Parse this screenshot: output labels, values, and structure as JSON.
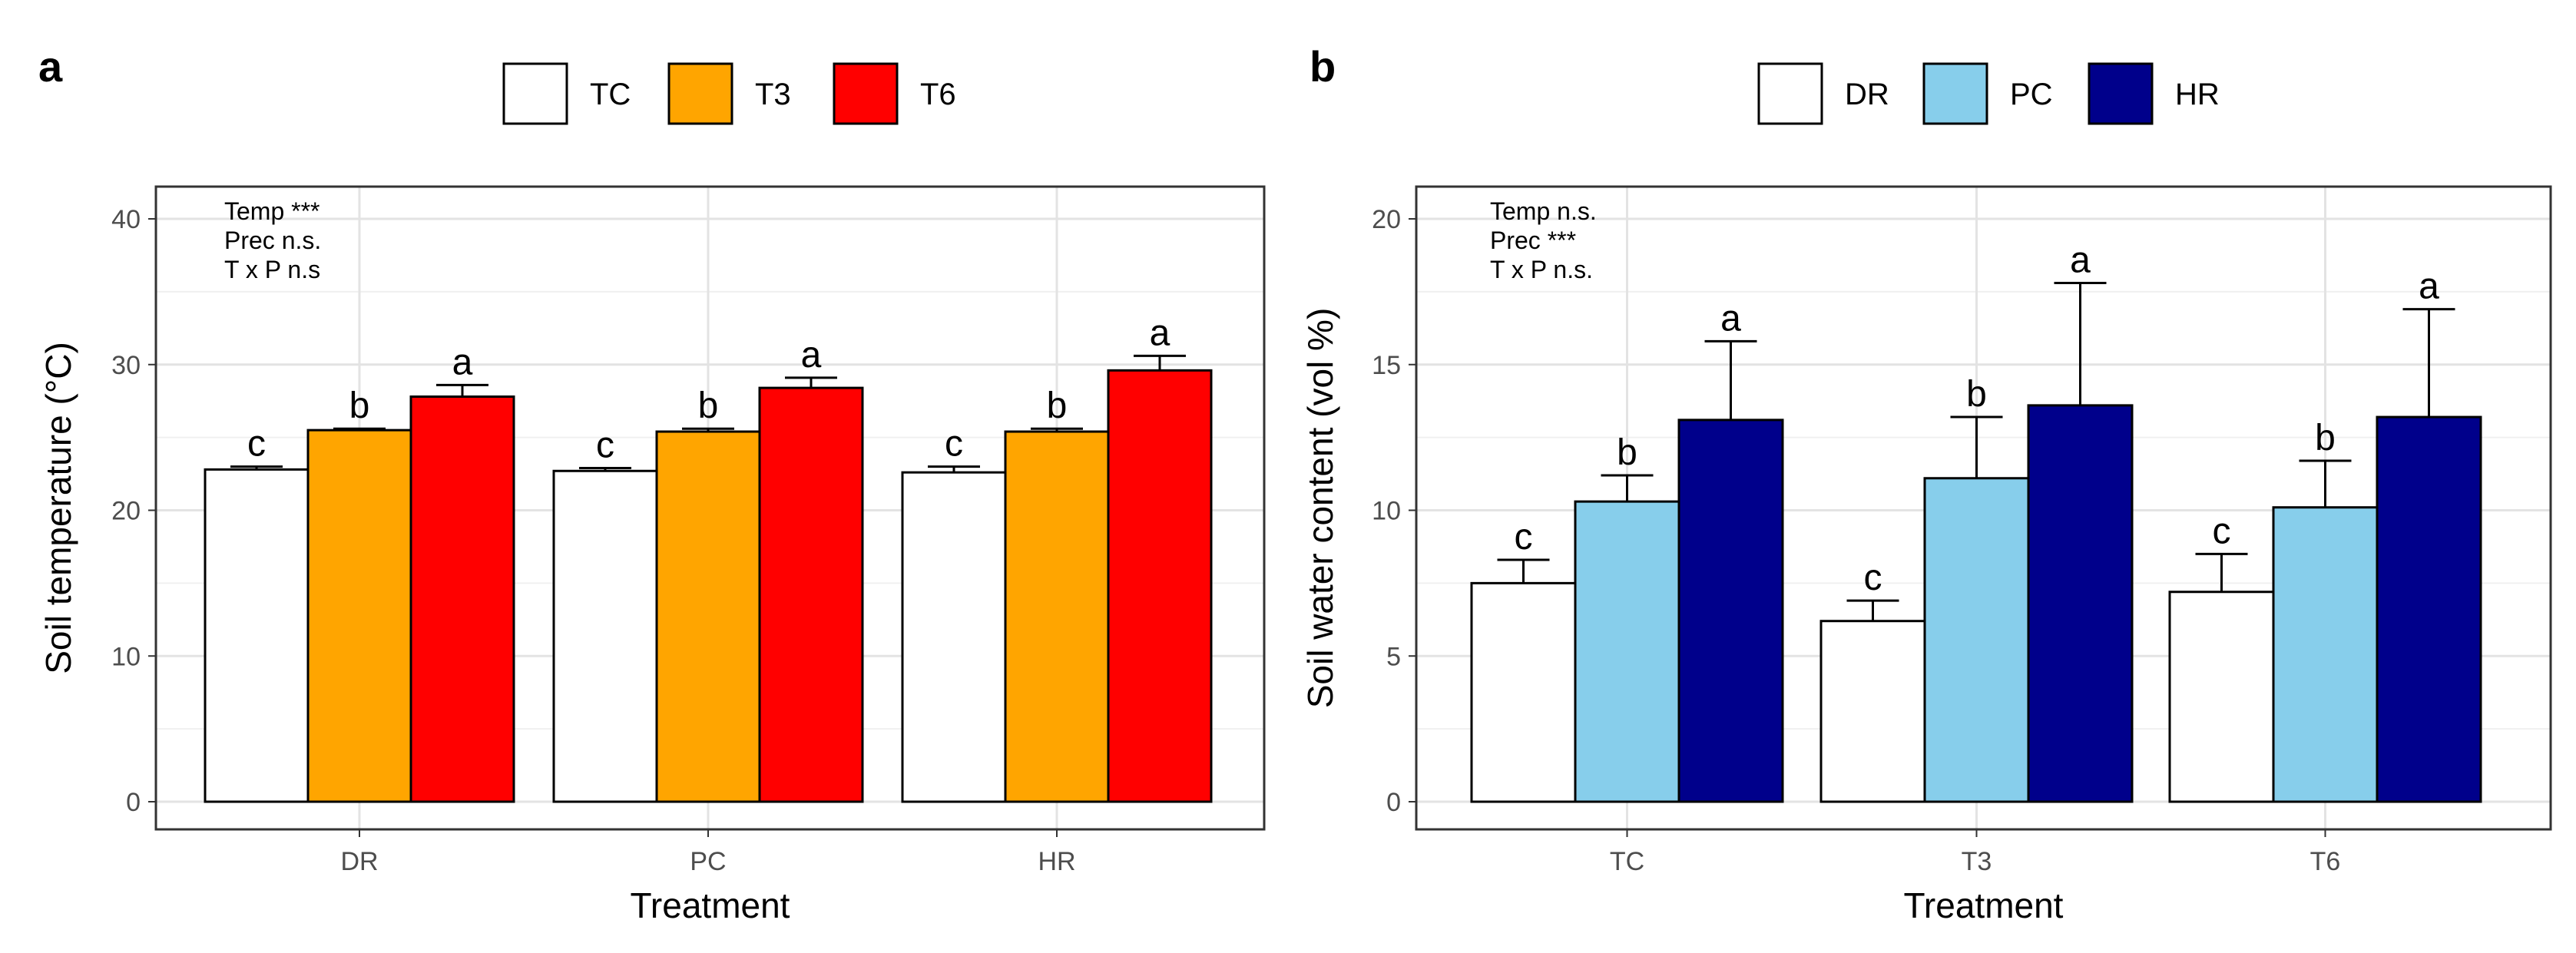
{
  "chart_data": [
    {
      "panel": "a",
      "type": "bar",
      "xlabel": "Treatment",
      "ylabel": "Soil temperature (°C)",
      "ylim": [
        0,
        40
      ],
      "yticks": [
        "0",
        "10",
        "20",
        "30",
        "40"
      ],
      "categories": [
        "DR",
        "PC",
        "HR"
      ],
      "grid": true,
      "legend_position": "top",
      "annotations": [
        "Temp ***",
        "Prec n.s.",
        "T x P n.s"
      ],
      "series": [
        {
          "name": "TC",
          "color": "#ffffff",
          "values": [
            22.8,
            22.7,
            22.6
          ],
          "errors": [
            0.2,
            0.2,
            0.4
          ],
          "letters": [
            "c",
            "c",
            "c"
          ]
        },
        {
          "name": "T3",
          "color": "#ffa500",
          "values": [
            25.5,
            25.4,
            25.4
          ],
          "errors": [
            0.1,
            0.2,
            0.2
          ],
          "letters": [
            "b",
            "b",
            "b"
          ]
        },
        {
          "name": "T6",
          "color": "#ff0000",
          "values": [
            27.8,
            28.4,
            29.6
          ],
          "errors": [
            0.8,
            0.7,
            1.0
          ],
          "letters": [
            "a",
            "a",
            "a"
          ]
        }
      ]
    },
    {
      "panel": "b",
      "type": "bar",
      "xlabel": "Treatment",
      "ylabel": "Soil water content (vol %)",
      "ylim": [
        0,
        20
      ],
      "yticks": [
        "0",
        "5",
        "10",
        "15",
        "20"
      ],
      "categories": [
        "TC",
        "T3",
        "T6"
      ],
      "grid": true,
      "legend_position": "top",
      "annotations": [
        "Temp n.s.",
        "Prec ***",
        "T x P n.s."
      ],
      "series": [
        {
          "name": "DR",
          "color": "#ffffff",
          "values": [
            7.5,
            6.2,
            7.2
          ],
          "errors": [
            0.8,
            0.7,
            1.3
          ],
          "letters": [
            "c",
            "c",
            "c"
          ]
        },
        {
          "name": "PC",
          "color": "#87ceeb",
          "values": [
            10.3,
            11.1,
            10.1
          ],
          "errors": [
            0.9,
            2.1,
            1.6
          ],
          "letters": [
            "b",
            "b",
            "b"
          ]
        },
        {
          "name": "HR",
          "color": "#00008b",
          "values": [
            13.1,
            13.6,
            13.2
          ],
          "errors": [
            2.7,
            4.2,
            3.7
          ],
          "letters": [
            "a",
            "a",
            "a"
          ]
        }
      ]
    }
  ]
}
